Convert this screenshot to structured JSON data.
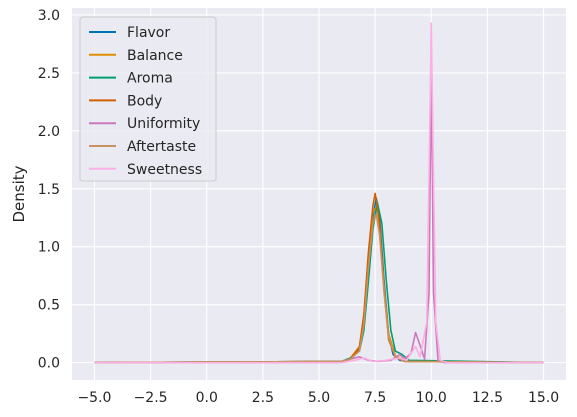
{
  "chart_data": {
    "type": "line",
    "title": "",
    "xlabel": "",
    "ylabel": "Density",
    "xlim": [
      -6.0,
      16.0
    ],
    "ylim": [
      -0.15,
      3.06
    ],
    "xticks": [
      -5.0,
      -2.5,
      0.0,
      2.5,
      5.0,
      7.5,
      10.0,
      12.5,
      15.0
    ],
    "xtick_labels": [
      "−5.0",
      "−2.5",
      "0.0",
      "2.5",
      "5.0",
      "7.5",
      "10.0",
      "12.5",
      "15.0"
    ],
    "yticks": [
      0.0,
      0.5,
      1.0,
      1.5,
      2.0,
      2.5,
      3.0
    ],
    "ytick_labels": [
      "0.0",
      "0.5",
      "1.0",
      "1.5",
      "2.0",
      "2.5",
      "3.0"
    ],
    "grid": true,
    "legend_position": "top-left",
    "background": "#eaeaf2",
    "series": [
      {
        "name": "Flavor",
        "color": "#0173b2",
        "points": [
          [
            -5,
            0
          ],
          [
            6.0,
            0.01
          ],
          [
            6.4,
            0.03
          ],
          [
            6.8,
            0.12
          ],
          [
            7.0,
            0.35
          ],
          [
            7.2,
            0.85
          ],
          [
            7.4,
            1.25
          ],
          [
            7.55,
            1.42
          ],
          [
            7.7,
            1.25
          ],
          [
            7.9,
            0.7
          ],
          [
            8.1,
            0.25
          ],
          [
            8.3,
            0.07
          ],
          [
            8.6,
            0.02
          ],
          [
            9.0,
            0.01
          ],
          [
            15,
            0
          ]
        ]
      },
      {
        "name": "Balance",
        "color": "#de8f05",
        "points": [
          [
            -5,
            0
          ],
          [
            6.0,
            0.01
          ],
          [
            6.4,
            0.04
          ],
          [
            6.8,
            0.14
          ],
          [
            7.0,
            0.4
          ],
          [
            7.2,
            0.9
          ],
          [
            7.4,
            1.3
          ],
          [
            7.5,
            1.33
          ],
          [
            7.7,
            1.15
          ],
          [
            7.9,
            0.65
          ],
          [
            8.1,
            0.25
          ],
          [
            8.4,
            0.06
          ],
          [
            8.7,
            0.03
          ],
          [
            9.2,
            0.01
          ],
          [
            15,
            0
          ]
        ]
      },
      {
        "name": "Aroma",
        "color": "#029e73",
        "points": [
          [
            -5,
            0
          ],
          [
            6.0,
            0.01
          ],
          [
            6.4,
            0.04
          ],
          [
            6.8,
            0.1
          ],
          [
            7.0,
            0.28
          ],
          [
            7.2,
            0.7
          ],
          [
            7.4,
            1.15
          ],
          [
            7.6,
            1.38
          ],
          [
            7.8,
            1.2
          ],
          [
            8.0,
            0.7
          ],
          [
            8.2,
            0.28
          ],
          [
            8.4,
            0.1
          ],
          [
            8.7,
            0.07
          ],
          [
            9.0,
            0.02
          ],
          [
            15,
            0
          ]
        ]
      },
      {
        "name": "Body",
        "color": "#d55e00",
        "points": [
          [
            -5,
            0
          ],
          [
            6.0,
            0.01
          ],
          [
            6.4,
            0.03
          ],
          [
            6.8,
            0.13
          ],
          [
            7.0,
            0.42
          ],
          [
            7.2,
            0.95
          ],
          [
            7.4,
            1.35
          ],
          [
            7.5,
            1.46
          ],
          [
            7.7,
            1.2
          ],
          [
            7.9,
            0.62
          ],
          [
            8.1,
            0.2
          ],
          [
            8.4,
            0.05
          ],
          [
            8.8,
            0.01
          ],
          [
            15,
            0
          ]
        ]
      },
      {
        "name": "Uniformity",
        "color": "#cc78bc",
        "points": [
          [
            -5,
            0
          ],
          [
            5.8,
            0
          ],
          [
            6.4,
            0.03
          ],
          [
            6.8,
            0.05
          ],
          [
            7.2,
            0.02
          ],
          [
            7.6,
            0.01
          ],
          [
            8.2,
            0.02
          ],
          [
            8.6,
            0.07
          ],
          [
            8.8,
            0.03
          ],
          [
            9.1,
            0.08
          ],
          [
            9.3,
            0.26
          ],
          [
            9.5,
            0.15
          ],
          [
            9.7,
            0.03
          ],
          [
            9.9,
            0.6
          ],
          [
            10.0,
            2.58
          ],
          [
            10.1,
            0.6
          ],
          [
            10.3,
            0.02
          ],
          [
            10.6,
            0
          ],
          [
            15,
            0
          ]
        ]
      },
      {
        "name": "Aftertaste",
        "color": "#ca9161",
        "points": [
          [
            -5,
            0
          ],
          [
            6.0,
            0.01
          ],
          [
            6.4,
            0.03
          ],
          [
            6.8,
            0.1
          ],
          [
            7.0,
            0.33
          ],
          [
            7.2,
            0.82
          ],
          [
            7.4,
            1.2
          ],
          [
            7.55,
            1.28
          ],
          [
            7.7,
            1.1
          ],
          [
            7.9,
            0.6
          ],
          [
            8.1,
            0.22
          ],
          [
            8.4,
            0.05
          ],
          [
            8.8,
            0.01
          ],
          [
            15,
            0
          ]
        ]
      },
      {
        "name": "Sweetness",
        "color": "#fbafe4",
        "points": [
          [
            -5,
            0
          ],
          [
            6.0,
            0
          ],
          [
            6.6,
            0.02
          ],
          [
            7.0,
            0.04
          ],
          [
            7.4,
            0.01
          ],
          [
            8.0,
            0.02
          ],
          [
            8.6,
            0.04
          ],
          [
            8.9,
            0.02
          ],
          [
            9.3,
            0.14
          ],
          [
            9.5,
            0.05
          ],
          [
            9.8,
            0.35
          ],
          [
            9.93,
            2.0
          ],
          [
            10.0,
            2.93
          ],
          [
            10.07,
            2.0
          ],
          [
            10.2,
            0.35
          ],
          [
            10.4,
            0.02
          ],
          [
            10.7,
            0
          ],
          [
            15,
            0
          ]
        ]
      }
    ]
  }
}
